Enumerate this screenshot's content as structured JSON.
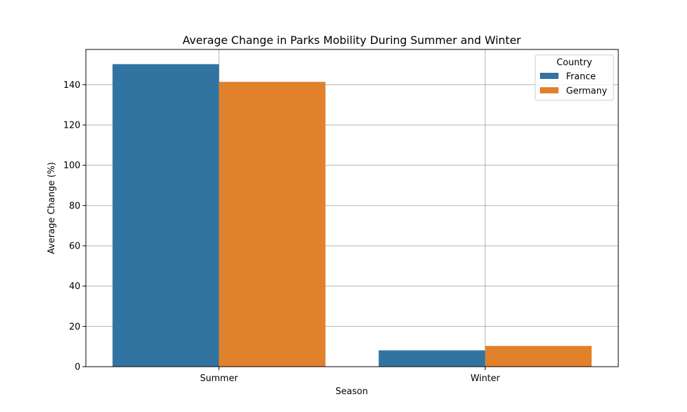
{
  "chart_data": {
    "type": "bar",
    "title": "Average Change in Parks Mobility During Summer and Winter",
    "xlabel": "Season",
    "ylabel": "Average Change (%)",
    "categories": [
      "Summer",
      "Winter"
    ],
    "series": [
      {
        "name": "France",
        "values": [
          150.2,
          8.1
        ],
        "color": "#3274a1"
      },
      {
        "name": "Germany",
        "values": [
          141.4,
          10.3
        ],
        "color": "#e1812c"
      }
    ],
    "ylim": [
      0,
      157.5
    ],
    "yticks": [
      0,
      20,
      40,
      60,
      80,
      100,
      120,
      140
    ],
    "grid": true,
    "legend": {
      "title": "Country",
      "placement": "top-right"
    }
  }
}
